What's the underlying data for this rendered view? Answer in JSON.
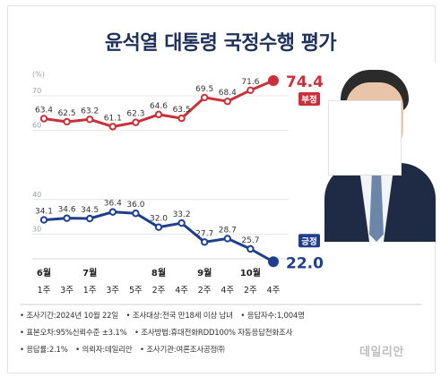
{
  "title": "윤석열 대통령 국정수행 평가",
  "chart_data": {
    "type": "line",
    "y_unit": "(%)",
    "yticks": [
      70,
      60,
      40,
      30
    ],
    "ylim": [
      20,
      77
    ],
    "months": [
      "6월",
      "7월",
      "8월",
      "9월",
      "10월"
    ],
    "weeks": [
      "1주",
      "3주",
      "1주",
      "3주",
      "5주",
      "2주",
      "4주",
      "2주",
      "4주",
      "2주",
      "4주"
    ],
    "series": [
      {
        "name": "부정",
        "color": "#c8313b",
        "values": [
          63.4,
          62.5,
          63.2,
          61.1,
          62.3,
          64.6,
          63.5,
          69.5,
          68.4,
          71.6,
          74.4
        ]
      },
      {
        "name": "긍정",
        "color": "#1f3f8c",
        "values": [
          34.1,
          34.6,
          34.5,
          36.4,
          36.0,
          32.0,
          33.2,
          27.7,
          28.7,
          25.7,
          22.0
        ]
      }
    ],
    "value_labels": {
      "부정": [
        "63.4",
        "62.5",
        "63.2",
        "61.1",
        "62.3",
        "64.6",
        "63.5",
        "69.5",
        "68.4",
        "71.6",
        "74.4"
      ],
      "긍정": [
        "34.1",
        "34.6",
        "34.5",
        "36.4",
        "36.0",
        "32.0",
        "33.2",
        "27.7",
        "28.7",
        "25.7",
        "22.0"
      ]
    },
    "grid": true
  },
  "notes": {
    "line1": [
      "• 조사기간:2024년 10월 22일",
      "• 조사대상:전국 만18세 이상 남녀",
      "• 응답자수:1,004명"
    ],
    "line2": [
      "• 표본오차:95%신뢰수준 ±3.1%",
      "• 조사방법:휴대전화RDD100% 자동응답전화조사"
    ],
    "line3": [
      "• 응답률:2.1%",
      "• 의뢰자:데일리안",
      "• 조사기관:여론조사공정㈜"
    ]
  },
  "watermark": "데일리안"
}
